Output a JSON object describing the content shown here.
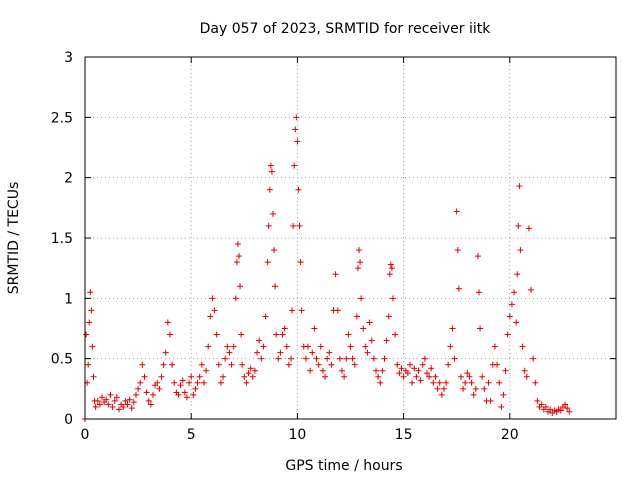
{
  "chart_data": {
    "type": "scatter",
    "title": "Day 057 of 2023, SRMTID for receiver iitk",
    "xlabel": "GPS time / hours",
    "ylabel": "SRMTID / TECUs",
    "xlim": [
      0,
      25
    ],
    "ylim": [
      0,
      3
    ],
    "xticks": [
      0,
      5,
      10,
      15,
      20
    ],
    "xtick_labels": [
      "0",
      "5",
      "10",
      "15",
      "20"
    ],
    "yticks": [
      0,
      0.5,
      1,
      1.5,
      2,
      2.5,
      3
    ],
    "ytick_labels": [
      "0",
      "0.5",
      "1",
      "1.5",
      "2",
      "2.5",
      "3"
    ],
    "grid": true,
    "marker": "+",
    "color": "#e00000",
    "series": [
      {
        "name": "SRMTID",
        "points": [
          [
            0.0,
            0.0
          ],
          [
            0.05,
            0.7
          ],
          [
            0.1,
            0.3
          ],
          [
            0.15,
            0.45
          ],
          [
            0.2,
            0.8
          ],
          [
            0.25,
            1.05
          ],
          [
            0.3,
            0.9
          ],
          [
            0.35,
            0.6
          ],
          [
            0.4,
            0.35
          ],
          [
            0.45,
            0.15
          ],
          [
            0.5,
            0.1
          ],
          [
            0.6,
            0.15
          ],
          [
            0.7,
            0.12
          ],
          [
            0.8,
            0.18
          ],
          [
            0.9,
            0.14
          ],
          [
            1.0,
            0.16
          ],
          [
            1.1,
            0.12
          ],
          [
            1.2,
            0.2
          ],
          [
            1.3,
            0.1
          ],
          [
            1.4,
            0.15
          ],
          [
            1.5,
            0.18
          ],
          [
            1.6,
            0.08
          ],
          [
            1.7,
            0.12
          ],
          [
            1.8,
            0.1
          ],
          [
            1.9,
            0.15
          ],
          [
            2.0,
            0.12
          ],
          [
            2.1,
            0.16
          ],
          [
            2.2,
            0.09
          ],
          [
            2.3,
            0.14
          ],
          [
            2.4,
            0.2
          ],
          [
            2.5,
            0.25
          ],
          [
            2.6,
            0.3
          ],
          [
            2.7,
            0.45
          ],
          [
            2.8,
            0.35
          ],
          [
            2.9,
            0.22
          ],
          [
            3.0,
            0.15
          ],
          [
            3.1,
            0.12
          ],
          [
            3.2,
            0.2
          ],
          [
            3.3,
            0.28
          ],
          [
            3.4,
            0.3
          ],
          [
            3.5,
            0.25
          ],
          [
            3.6,
            0.35
          ],
          [
            3.7,
            0.45
          ],
          [
            3.8,
            0.55
          ],
          [
            3.9,
            0.8
          ],
          [
            4.0,
            0.7
          ],
          [
            4.1,
            0.45
          ],
          [
            4.2,
            0.3
          ],
          [
            4.3,
            0.22
          ],
          [
            4.4,
            0.2
          ],
          [
            4.5,
            0.28
          ],
          [
            4.6,
            0.32
          ],
          [
            4.7,
            0.22
          ],
          [
            4.8,
            0.18
          ],
          [
            4.9,
            0.3
          ],
          [
            5.0,
            0.35
          ],
          [
            5.1,
            0.2
          ],
          [
            5.2,
            0.25
          ],
          [
            5.3,
            0.3
          ],
          [
            5.4,
            0.35
          ],
          [
            5.5,
            0.45
          ],
          [
            5.6,
            0.3
          ],
          [
            5.7,
            0.4
          ],
          [
            5.8,
            0.6
          ],
          [
            5.9,
            0.85
          ],
          [
            6.0,
            1.0
          ],
          [
            6.1,
            0.9
          ],
          [
            6.2,
            0.7
          ],
          [
            6.3,
            0.45
          ],
          [
            6.4,
            0.3
          ],
          [
            6.5,
            0.35
          ],
          [
            6.6,
            0.5
          ],
          [
            6.7,
            0.6
          ],
          [
            6.8,
            0.55
          ],
          [
            6.9,
            0.45
          ],
          [
            7.0,
            0.6
          ],
          [
            7.1,
            1.0
          ],
          [
            7.15,
            1.3
          ],
          [
            7.2,
            1.45
          ],
          [
            7.25,
            1.35
          ],
          [
            7.3,
            1.1
          ],
          [
            7.35,
            0.7
          ],
          [
            7.4,
            0.45
          ],
          [
            7.5,
            0.35
          ],
          [
            7.6,
            0.3
          ],
          [
            7.7,
            0.38
          ],
          [
            7.8,
            0.42
          ],
          [
            7.9,
            0.35
          ],
          [
            8.0,
            0.4
          ],
          [
            8.1,
            0.55
          ],
          [
            8.2,
            0.65
          ],
          [
            8.3,
            0.5
          ],
          [
            8.4,
            0.6
          ],
          [
            8.5,
            0.85
          ],
          [
            8.6,
            1.3
          ],
          [
            8.65,
            1.6
          ],
          [
            8.7,
            1.9
          ],
          [
            8.75,
            2.1
          ],
          [
            8.8,
            2.05
          ],
          [
            8.85,
            1.7
          ],
          [
            8.9,
            1.4
          ],
          [
            8.95,
            1.1
          ],
          [
            9.0,
            0.7
          ],
          [
            9.1,
            0.5
          ],
          [
            9.2,
            0.55
          ],
          [
            9.3,
            0.7
          ],
          [
            9.4,
            0.75
          ],
          [
            9.5,
            0.6
          ],
          [
            9.6,
            0.45
          ],
          [
            9.7,
            0.5
          ],
          [
            9.75,
            0.9
          ],
          [
            9.8,
            1.6
          ],
          [
            9.85,
            2.1
          ],
          [
            9.9,
            2.4
          ],
          [
            9.95,
            2.5
          ],
          [
            10.0,
            2.3
          ],
          [
            10.05,
            1.9
          ],
          [
            10.1,
            1.6
          ],
          [
            10.15,
            1.3
          ],
          [
            10.2,
            0.9
          ],
          [
            10.3,
            0.6
          ],
          [
            10.4,
            0.5
          ],
          [
            10.5,
            0.6
          ],
          [
            10.6,
            0.4
          ],
          [
            10.7,
            0.55
          ],
          [
            10.8,
            0.75
          ],
          [
            10.9,
            0.5
          ],
          [
            11.0,
            0.45
          ],
          [
            11.1,
            0.6
          ],
          [
            11.2,
            0.4
          ],
          [
            11.3,
            0.35
          ],
          [
            11.4,
            0.5
          ],
          [
            11.5,
            0.55
          ],
          [
            11.6,
            0.45
          ],
          [
            11.7,
            0.9
          ],
          [
            11.8,
            1.2
          ],
          [
            11.9,
            0.9
          ],
          [
            12.0,
            0.5
          ],
          [
            12.1,
            0.4
          ],
          [
            12.2,
            0.35
          ],
          [
            12.3,
            0.5
          ],
          [
            12.4,
            0.7
          ],
          [
            12.5,
            0.6
          ],
          [
            12.6,
            0.5
          ],
          [
            12.7,
            0.45
          ],
          [
            12.8,
            0.85
          ],
          [
            12.85,
            1.25
          ],
          [
            12.9,
            1.4
          ],
          [
            12.95,
            1.3
          ],
          [
            13.0,
            1.0
          ],
          [
            13.1,
            0.75
          ],
          [
            13.2,
            0.6
          ],
          [
            13.3,
            0.55
          ],
          [
            13.4,
            0.8
          ],
          [
            13.5,
            0.65
          ],
          [
            13.6,
            0.5
          ],
          [
            13.7,
            0.4
          ],
          [
            13.8,
            0.35
          ],
          [
            13.9,
            0.3
          ],
          [
            14.0,
            0.4
          ],
          [
            14.1,
            0.5
          ],
          [
            14.2,
            0.65
          ],
          [
            14.3,
            0.85
          ],
          [
            14.35,
            1.2
          ],
          [
            14.4,
            1.28
          ],
          [
            14.45,
            1.25
          ],
          [
            14.5,
            1.0
          ],
          [
            14.6,
            0.7
          ],
          [
            14.7,
            0.45
          ],
          [
            14.8,
            0.38
          ],
          [
            14.9,
            0.42
          ],
          [
            15.0,
            0.35
          ],
          [
            15.1,
            0.4
          ],
          [
            15.2,
            0.38
          ],
          [
            15.3,
            0.45
          ],
          [
            15.4,
            0.3
          ],
          [
            15.5,
            0.42
          ],
          [
            15.6,
            0.35
          ],
          [
            15.7,
            0.4
          ],
          [
            15.8,
            0.32
          ],
          [
            15.9,
            0.45
          ],
          [
            16.0,
            0.5
          ],
          [
            16.1,
            0.38
          ],
          [
            16.2,
            0.35
          ],
          [
            16.3,
            0.42
          ],
          [
            16.4,
            0.3
          ],
          [
            16.5,
            0.35
          ],
          [
            16.6,
            0.25
          ],
          [
            16.7,
            0.3
          ],
          [
            16.8,
            0.2
          ],
          [
            16.9,
            0.25
          ],
          [
            17.0,
            0.3
          ],
          [
            17.1,
            0.45
          ],
          [
            17.2,
            0.6
          ],
          [
            17.3,
            0.75
          ],
          [
            17.4,
            0.5
          ],
          [
            17.5,
            1.72
          ],
          [
            17.55,
            1.4
          ],
          [
            17.6,
            1.08
          ],
          [
            17.7,
            0.35
          ],
          [
            17.8,
            0.25
          ],
          [
            17.9,
            0.3
          ],
          [
            18.0,
            0.38
          ],
          [
            18.1,
            0.35
          ],
          [
            18.2,
            0.3
          ],
          [
            18.3,
            0.2
          ],
          [
            18.4,
            0.25
          ],
          [
            18.5,
            1.35
          ],
          [
            18.55,
            1.05
          ],
          [
            18.6,
            0.75
          ],
          [
            18.7,
            0.35
          ],
          [
            18.8,
            0.25
          ],
          [
            18.9,
            0.15
          ],
          [
            19.0,
            0.3
          ],
          [
            19.1,
            0.15
          ],
          [
            19.2,
            0.45
          ],
          [
            19.3,
            0.6
          ],
          [
            19.4,
            0.45
          ],
          [
            19.5,
            0.3
          ],
          [
            19.6,
            0.1
          ],
          [
            19.7,
            0.2
          ],
          [
            19.8,
            0.4
          ],
          [
            19.9,
            0.7
          ],
          [
            20.0,
            0.85
          ],
          [
            20.1,
            0.95
          ],
          [
            20.2,
            1.05
          ],
          [
            20.3,
            0.8
          ],
          [
            20.35,
            1.2
          ],
          [
            20.4,
            1.6
          ],
          [
            20.45,
            1.93
          ],
          [
            20.5,
            1.4
          ],
          [
            20.6,
            0.6
          ],
          [
            20.7,
            0.4
          ],
          [
            20.8,
            0.35
          ],
          [
            20.9,
            1.58
          ],
          [
            21.0,
            1.07
          ],
          [
            21.1,
            0.5
          ],
          [
            21.2,
            0.3
          ],
          [
            21.3,
            0.15
          ],
          [
            21.4,
            0.1
          ],
          [
            21.5,
            0.12
          ],
          [
            21.6,
            0.08
          ],
          [
            21.7,
            0.1
          ],
          [
            21.8,
            0.06
          ],
          [
            21.9,
            0.08
          ],
          [
            22.0,
            0.05
          ],
          [
            22.1,
            0.07
          ],
          [
            22.2,
            0.06
          ],
          [
            22.3,
            0.08
          ],
          [
            22.4,
            0.07
          ],
          [
            22.5,
            0.1
          ],
          [
            22.6,
            0.12
          ],
          [
            22.7,
            0.09
          ],
          [
            22.8,
            0.06
          ]
        ]
      }
    ]
  }
}
